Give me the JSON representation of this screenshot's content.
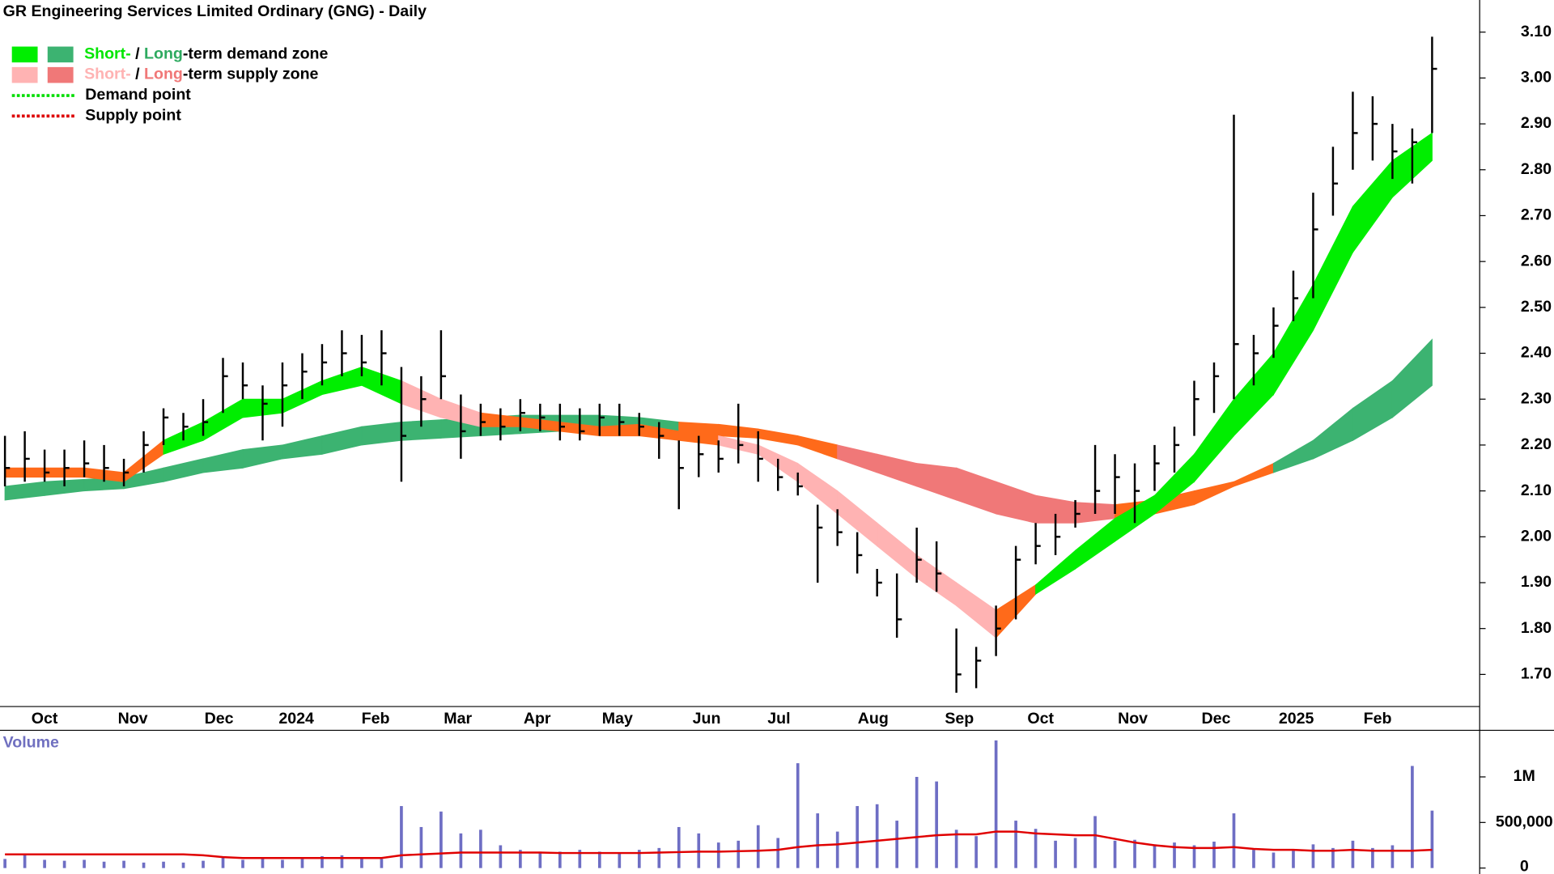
{
  "chart_data": [
    {
      "type": "candlestick",
      "title": "GR Engineering Services Limited Ordinary (GNG) - Daily",
      "x": [
        0,
        1,
        2,
        3,
        4,
        5,
        6,
        7,
        8,
        9,
        10,
        11,
        12,
        13,
        14,
        15,
        16,
        17,
        18,
        19,
        20,
        21,
        22,
        23,
        24,
        25,
        26,
        27,
        28,
        29,
        30,
        31,
        32,
        33,
        34,
        35,
        36,
        37,
        38,
        39,
        40,
        41,
        42,
        43,
        44,
        45,
        46,
        47,
        48,
        49,
        50,
        51,
        52,
        53,
        54,
        55,
        56,
        57,
        58,
        59,
        60,
        61,
        62,
        63,
        64,
        65,
        66,
        67,
        68,
        69,
        70,
        71,
        72
      ],
      "high": [
        2.22,
        2.23,
        2.19,
        2.19,
        2.21,
        2.2,
        2.17,
        2.23,
        2.28,
        2.27,
        2.3,
        2.39,
        2.38,
        2.33,
        2.38,
        2.4,
        2.42,
        2.45,
        2.44,
        2.45,
        2.37,
        2.35,
        2.45,
        2.31,
        2.29,
        2.28,
        2.3,
        2.29,
        2.29,
        2.28,
        2.29,
        2.29,
        2.27,
        2.25,
        2.21,
        2.22,
        2.21,
        2.29,
        2.23,
        2.17,
        2.14,
        2.07,
        2.06,
        2.01,
        1.93,
        1.92,
        2.02,
        1.99,
        1.8,
        1.76,
        1.85,
        1.98,
        2.03,
        2.05,
        2.08,
        2.2,
        2.18,
        2.16,
        2.2,
        2.24,
        2.34,
        2.38,
        2.92,
        2.44,
        2.5,
        2.58,
        2.75,
        2.85,
        2.97,
        2.96,
        2.9,
        2.89,
        3.09
      ],
      "low": [
        2.11,
        2.12,
        2.12,
        2.11,
        2.13,
        2.12,
        2.11,
        2.14,
        2.2,
        2.21,
        2.22,
        2.27,
        2.3,
        2.21,
        2.24,
        2.3,
        2.33,
        2.35,
        2.35,
        2.33,
        2.12,
        2.24,
        2.3,
        2.17,
        2.22,
        2.21,
        2.23,
        2.23,
        2.21,
        2.21,
        2.22,
        2.22,
        2.22,
        2.17,
        2.06,
        2.13,
        2.14,
        2.16,
        2.12,
        2.1,
        2.09,
        1.9,
        1.98,
        1.92,
        1.87,
        1.78,
        1.9,
        1.88,
        1.66,
        1.67,
        1.74,
        1.82,
        1.94,
        1.96,
        2.02,
        2.05,
        2.05,
        2.03,
        2.1,
        2.14,
        2.22,
        2.27,
        2.3,
        2.33,
        2.39,
        2.47,
        2.52,
        2.7,
        2.8,
        2.82,
        2.78,
        2.77,
        2.88
      ],
      "close": [
        2.15,
        2.17,
        2.14,
        2.15,
        2.16,
        2.15,
        2.14,
        2.2,
        2.26,
        2.24,
        2.25,
        2.35,
        2.33,
        2.29,
        2.33,
        2.36,
        2.38,
        2.4,
        2.38,
        2.4,
        2.22,
        2.3,
        2.35,
        2.23,
        2.25,
        2.24,
        2.27,
        2.26,
        2.24,
        2.23,
        2.26,
        2.25,
        2.24,
        2.22,
        2.15,
        2.18,
        2.17,
        2.2,
        2.17,
        2.13,
        2.11,
        2.02,
        2.01,
        1.96,
        1.9,
        1.82,
        1.95,
        1.92,
        1.7,
        1.73,
        1.8,
        1.95,
        1.98,
        2.0,
        2.05,
        2.1,
        2.13,
        2.1,
        2.16,
        2.2,
        2.3,
        2.35,
        2.42,
        2.4,
        2.46,
        2.52,
        2.67,
        2.77,
        2.88,
        2.9,
        2.84,
        2.86,
        3.02
      ],
      "candle_color": "#000000",
      "zones": {
        "x": [
          0,
          2,
          4,
          6,
          8,
          10,
          12,
          14,
          16,
          18,
          20,
          22,
          24,
          26,
          28,
          30,
          32,
          34,
          36,
          38,
          40,
          42,
          44,
          46,
          48,
          50,
          52,
          54,
          56,
          58,
          60,
          62,
          64,
          66,
          68,
          70,
          72
        ],
        "long": {
          "upper": [
            2.11,
            2.12,
            2.125,
            2.13,
            2.15,
            2.17,
            2.19,
            2.2,
            2.22,
            2.24,
            2.25,
            2.255,
            2.26,
            2.265,
            2.265,
            2.265,
            2.26,
            2.25,
            2.245,
            2.235,
            2.22,
            2.2,
            2.18,
            2.16,
            2.15,
            2.12,
            2.09,
            2.075,
            2.07,
            2.08,
            2.1,
            2.12,
            2.16,
            2.21,
            2.28,
            2.34,
            2.43
          ],
          "lower": [
            2.08,
            2.09,
            2.1,
            2.105,
            2.12,
            2.14,
            2.15,
            2.17,
            2.18,
            2.2,
            2.21,
            2.215,
            2.22,
            2.225,
            2.23,
            2.23,
            2.23,
            2.225,
            2.22,
            2.215,
            2.2,
            2.17,
            2.14,
            2.11,
            2.08,
            2.05,
            2.03,
            2.03,
            2.04,
            2.05,
            2.07,
            2.11,
            2.14,
            2.17,
            2.21,
            2.26,
            2.33
          ],
          "state": [
            "demand",
            "demand",
            "demand",
            "demand",
            "demand",
            "demand",
            "demand",
            "demand",
            "demand",
            "demand",
            "demand",
            "demand",
            "demand",
            "demand",
            "demand",
            "demand",
            "demand",
            "mixed",
            "mixed",
            "mixed",
            "mixed",
            "supply",
            "supply",
            "supply",
            "supply",
            "supply",
            "supply",
            "supply",
            "mixed",
            "mixed",
            "mixed",
            "mixed",
            "demand",
            "demand",
            "demand",
            "demand",
            "demand"
          ],
          "colors": {
            "demand": "#3cb371",
            "supply": "#f07878",
            "mixed": "#ff6a1a"
          }
        },
        "short": {
          "upper": [
            2.15,
            2.15,
            2.15,
            2.14,
            2.21,
            2.25,
            2.3,
            2.3,
            2.34,
            2.37,
            2.34,
            2.3,
            2.27,
            2.26,
            2.25,
            2.24,
            2.245,
            2.23,
            2.22,
            2.2,
            2.16,
            2.1,
            2.03,
            1.96,
            1.9,
            1.84,
            1.895,
            1.97,
            2.04,
            2.09,
            2.18,
            2.3,
            2.4,
            2.55,
            2.72,
            2.82,
            2.88
          ],
          "lower": [
            2.13,
            2.13,
            2.13,
            2.12,
            2.18,
            2.21,
            2.26,
            2.27,
            2.31,
            2.33,
            2.29,
            2.26,
            2.24,
            2.24,
            2.23,
            2.22,
            2.22,
            2.21,
            2.2,
            2.18,
            2.12,
            2.05,
            1.98,
            1.91,
            1.85,
            1.78,
            1.875,
            1.93,
            1.99,
            2.05,
            2.12,
            2.22,
            2.31,
            2.45,
            2.62,
            2.74,
            2.82
          ],
          "state": [
            "mixed",
            "mixed",
            "mixed",
            "mixed",
            "demand",
            "demand",
            "demand",
            "demand",
            "demand",
            "demand",
            "supply",
            "supply",
            "mixed",
            "mixed",
            "mixed",
            "mixed",
            "mixed",
            "mixed",
            "supply",
            "supply",
            "supply",
            "supply",
            "supply",
            "supply",
            "supply",
            "mixed",
            "demand",
            "demand",
            "demand",
            "demand",
            "demand",
            "demand",
            "demand",
            "demand",
            "demand",
            "demand",
            "demand"
          ],
          "colors": {
            "demand": "#00ee00",
            "supply": "#ffb3b3",
            "mixed": "#ff6a1a"
          }
        }
      },
      "legend": [
        {
          "parts": [
            {
              "text": "Short-",
              "color": "#00e600"
            },
            {
              "text": " / "
            },
            {
              "text": "Long",
              "color": "#2eaa60"
            },
            {
              "text": "-term demand zone"
            }
          ],
          "swatches": [
            "#00ee00",
            "#3cb371"
          ]
        },
        {
          "parts": [
            {
              "text": "Short-",
              "color": "#ffb3b3"
            },
            {
              "text": " / "
            },
            {
              "text": "Long",
              "color": "#f07878"
            },
            {
              "text": "-term supply zone"
            }
          ],
          "swatches": [
            "#ffb3b3",
            "#f07878"
          ]
        },
        {
          "parts": [
            {
              "text": "Demand point"
            }
          ],
          "line": "#00dd00"
        },
        {
          "parts": [
            {
              "text": "Supply point"
            }
          ],
          "line": "#dd0000"
        }
      ],
      "xlim": [
        -0.25,
        74.4
      ],
      "xticks": [
        {
          "value": 2.0,
          "label": "Oct"
        },
        {
          "value": 6.45,
          "label": "Nov"
        },
        {
          "value": 10.8,
          "label": "Dec"
        },
        {
          "value": 14.7,
          "label": "2024"
        },
        {
          "value": 18.7,
          "label": "Feb"
        },
        {
          "value": 22.85,
          "label": "Mar"
        },
        {
          "value": 26.85,
          "label": "Apr"
        },
        {
          "value": 30.9,
          "label": "May"
        },
        {
          "value": 35.4,
          "label": "Jun"
        },
        {
          "value": 39.05,
          "label": "Jul"
        },
        {
          "value": 43.8,
          "label": "Aug"
        },
        {
          "value": 48.15,
          "label": "Sep"
        },
        {
          "value": 52.25,
          "label": "Oct"
        },
        {
          "value": 56.9,
          "label": "Nov"
        },
        {
          "value": 61.1,
          "label": "Dec"
        },
        {
          "value": 65.15,
          "label": "2025"
        },
        {
          "value": 69.25,
          "label": "Feb"
        }
      ],
      "ylim": [
        1.63,
        3.17
      ],
      "yticks": [
        {
          "value": 1.7,
          "label": "1.70"
        },
        {
          "value": 1.8,
          "label": "1.80"
        },
        {
          "value": 1.9,
          "label": "1.90"
        },
        {
          "value": 2.0,
          "label": "2.00"
        },
        {
          "value": 2.1,
          "label": "2.10"
        },
        {
          "value": 2.2,
          "label": "2.20"
        },
        {
          "value": 2.3,
          "label": "2.30"
        },
        {
          "value": 2.4,
          "label": "2.40"
        },
        {
          "value": 2.5,
          "label": "2.50"
        },
        {
          "value": 2.6,
          "label": "2.60"
        },
        {
          "value": 2.7,
          "label": "2.70"
        },
        {
          "value": 2.8,
          "label": "2.80"
        },
        {
          "value": 2.9,
          "label": "2.90"
        },
        {
          "value": 3.0,
          "label": "3.00"
        },
        {
          "value": 3.1,
          "label": "3.10"
        }
      ]
    },
    {
      "type": "bar",
      "ylabel": "Volume",
      "x": [
        0,
        1,
        2,
        3,
        4,
        5,
        6,
        7,
        8,
        9,
        10,
        11,
        12,
        13,
        14,
        15,
        16,
        17,
        18,
        19,
        20,
        21,
        22,
        23,
        24,
        25,
        26,
        27,
        28,
        29,
        30,
        31,
        32,
        33,
        34,
        35,
        36,
        37,
        38,
        39,
        40,
        41,
        42,
        43,
        44,
        45,
        46,
        47,
        48,
        49,
        50,
        51,
        52,
        53,
        54,
        55,
        56,
        57,
        58,
        59,
        60,
        61,
        62,
        63,
        64,
        65,
        66,
        67,
        68,
        69,
        70,
        71,
        72
      ],
      "values": [
        100000,
        150000,
        90000,
        80000,
        90000,
        70000,
        80000,
        60000,
        70000,
        60000,
        80000,
        120000,
        90000,
        100000,
        90000,
        110000,
        130000,
        140000,
        120000,
        100000,
        680000,
        450000,
        620000,
        380000,
        420000,
        250000,
        200000,
        180000,
        180000,
        200000,
        180000,
        170000,
        200000,
        220000,
        450000,
        380000,
        280000,
        300000,
        470000,
        330000,
        1150000,
        600000,
        400000,
        680000,
        700000,
        520000,
        1000000,
        950000,
        420000,
        350000,
        1400000,
        520000,
        430000,
        300000,
        330000,
        570000,
        300000,
        310000,
        260000,
        280000,
        250000,
        290000,
        600000,
        200000,
        170000,
        190000,
        260000,
        220000,
        300000,
        220000,
        250000,
        1120000,
        630000
      ],
      "color": "#6e6ec4",
      "ma": {
        "color": "#e00000",
        "values": [
          150000,
          150000,
          150000,
          150000,
          150000,
          150000,
          150000,
          150000,
          150000,
          150000,
          140000,
          120000,
          110000,
          110000,
          110000,
          110000,
          110000,
          110000,
          110000,
          110000,
          140000,
          150000,
          160000,
          170000,
          170000,
          170000,
          170000,
          170000,
          165000,
          165000,
          165000,
          165000,
          165000,
          170000,
          175000,
          180000,
          180000,
          185000,
          190000,
          200000,
          230000,
          250000,
          260000,
          280000,
          300000,
          320000,
          340000,
          360000,
          370000,
          370000,
          400000,
          400000,
          380000,
          370000,
          360000,
          360000,
          320000,
          280000,
          250000,
          230000,
          220000,
          220000,
          230000,
          210000,
          200000,
          200000,
          190000,
          190000,
          200000,
          190000,
          190000,
          190000,
          200000
        ]
      },
      "xlim": [
        -0.25,
        74.4
      ],
      "ylim": [
        0,
        1500000
      ],
      "yticks": [
        0,
        {
          "value": 500000,
          "label": "500,000"
        },
        {
          "value": 1000000,
          "label": "1M"
        }
      ]
    }
  ]
}
